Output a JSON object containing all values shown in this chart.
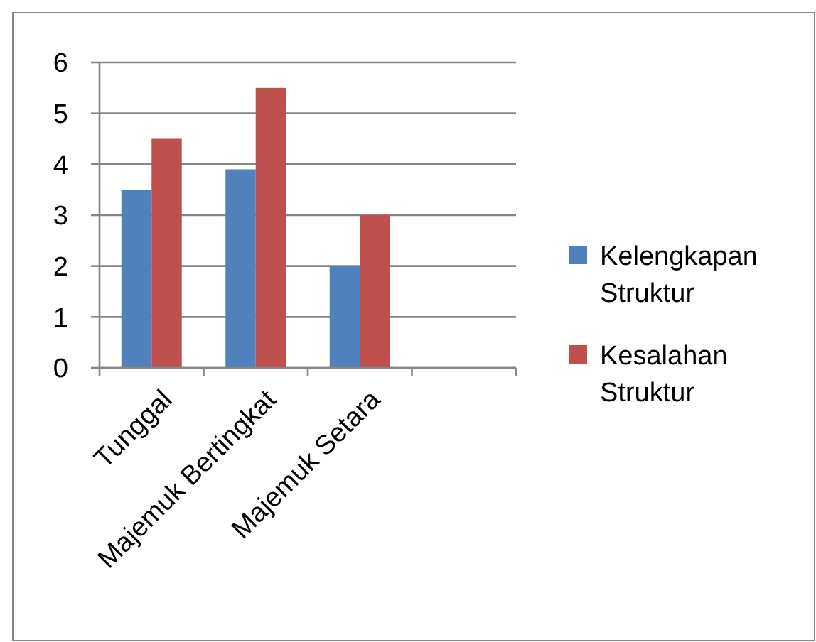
{
  "chart_data": {
    "type": "bar",
    "categories": [
      "Tunggal",
      "Majemuk Bertingkat",
      "Majemuk Setara",
      null
    ],
    "series": [
      {
        "name": "Kelengkapan Struktur",
        "color": "#4f81bd",
        "values": [
          3.5,
          3.9,
          2,
          null
        ]
      },
      {
        "name": "Kesalahan Struktur",
        "color": "#c0504d",
        "values": [
          4.5,
          5.5,
          3,
          null
        ]
      }
    ],
    "ylim": [
      0,
      6
    ],
    "yticks": [
      0,
      1,
      2,
      3,
      4,
      5,
      6
    ],
    "grid": "y",
    "legend": "right"
  }
}
